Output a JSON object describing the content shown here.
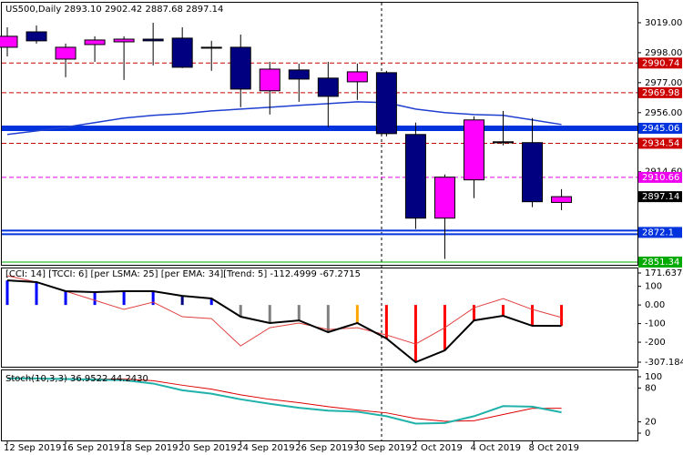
{
  "chart_data": [
    {
      "type": "candlestick",
      "title": "US500,Daily  2893.10 2902.42 2887.68 2897.14",
      "categories": [
        "12 Sep 2019",
        null,
        "16 Sep 2019",
        null,
        "18 Sep 2019",
        null,
        "20 Sep 2019",
        null,
        "24 Sep 2019",
        null,
        "26 Sep 2019",
        null,
        "30 Sep 2019",
        null,
        "2 Oct 2019",
        null,
        "4 Oct 2019",
        null,
        "8 Oct 2019",
        null
      ],
      "open": [
        3001.8,
        3012.6,
        2993.5,
        3003.7,
        3005.6,
        3007.5,
        3008.2,
        3001.8,
        3001.8,
        2971.3,
        2985.9,
        2980.2,
        2977.6,
        2984.0,
        2940.7,
        2882.1,
        2908.9,
        2935.6,
        2935.0,
        2893.1
      ],
      "high": [
        3015.8,
        3017.1,
        3004.4,
        3009.5,
        3009.5,
        3019.0,
        3015.8,
        3006.3,
        3010.7,
        2991.6,
        2990.4,
        2991.6,
        2990.4,
        2985.3,
        2949.0,
        2912.7,
        2953.4,
        2957.2,
        2952.2,
        2902.42
      ],
      "low": [
        2995.4,
        3004.4,
        2980.8,
        2991.6,
        2978.9,
        2989.1,
        2987.2,
        2985.3,
        2959.8,
        2954.7,
        2963.6,
        2945.8,
        2964.9,
        2939.4,
        2874.5,
        2853.5,
        2896.1,
        2933.1,
        2889.8,
        2887.68
      ],
      "close": [
        3009.5,
        3006.3,
        3001.8,
        3006.9,
        3007.5,
        3006.3,
        2987.8,
        3001.2,
        2972.5,
        2986.5,
        2979.5,
        2967.4,
        2984.6,
        2941.3,
        2882.1,
        2910.8,
        2950.9,
        2934.9,
        2893.6,
        2897.14
      ],
      "up_color": "#ff00ff",
      "down_color": "#000080",
      "ma": {
        "color": "#1f3fd0",
        "values": [
          2940.7,
          2943.2,
          2945.8,
          2949.0,
          2952.2,
          2954.1,
          2955.3,
          2957.2,
          2958.5,
          2959.8,
          2961.1,
          2962.3,
          2963.6,
          2963.0,
          2958.5,
          2956.0,
          2954.7,
          2954.1,
          2950.9,
          2947.7
        ]
      },
      "ylim": [
        2849.4,
        3033
      ],
      "yticks": [
        {
          "value": 3019,
          "label": "3019.00"
        },
        {
          "value": 2998,
          "label": "2998.00"
        },
        {
          "value": 2977,
          "label": "2977.00"
        },
        {
          "value": 2956,
          "label": "2956.00"
        },
        {
          "value": 2914.6,
          "label": "2914.60"
        }
      ],
      "levels": [
        {
          "value": 2990.74,
          "color": "#cc0000",
          "style": "dashed"
        },
        {
          "value": 2969.98,
          "color": "#cc0000",
          "style": "dashed"
        },
        {
          "value": 2945.06,
          "color": "#0033dd",
          "style": "thick"
        },
        {
          "value": 2934.54,
          "color": "#cc0000",
          "style": "dashed"
        },
        {
          "value": 2910.66,
          "color": "#ee00ee",
          "style": "dashed"
        },
        {
          "value": 2872.1,
          "color": "#0033dd",
          "style": "double"
        },
        {
          "value": 2851.34,
          "color": "#00aa00",
          "style": "solid"
        }
      ],
      "last_color": "#000000"
    },
    {
      "type": "line",
      "title": "[CCI: 14] [TCCI: 6] [per LSMA: 25] [per EMA: 34][Trend: 5]  -112.4999 -67.2715",
      "series": [
        {
          "color": "#000000",
          "values": [
            132,
            123,
            74,
            69,
            74,
            74,
            49,
            35,
            -63,
            -97,
            -83,
            -146,
            -97,
            -180,
            -307.1842,
            -244,
            -83,
            -58,
            -112,
            -112.4999
          ]
        },
        {
          "color": "#e04040",
          "values": [
            157,
            123,
            74,
            25,
            -24,
            15,
            -63,
            -73,
            -220,
            -122,
            -97,
            -132,
            -122,
            -161,
            -210,
            -122,
            -15,
            34,
            -24,
            -67.2715
          ]
        }
      ],
      "bar_colors": [
        "#0000ff",
        "#0000ff",
        "#0000ff",
        "#0000ff",
        "#0000ff",
        "#0000ff",
        "#000080",
        "#0000ff",
        "#808080",
        "#808080",
        "#808080",
        "#808080",
        "#ffa500",
        "#ff0000",
        "#ff0000",
        "#ff0000",
        "#ff0000",
        "#ff0000",
        "#ff0000",
        "#ff0000"
      ],
      "ylim": [
        -307.1842,
        171.6374
      ],
      "yticks": [
        171.6374,
        100,
        {
          "value": 0,
          "label": "0.00"
        },
        -100,
        -200,
        -307.1842
      ]
    },
    {
      "type": "line",
      "title": "Stoch(10,3,3) 36.9522 44.2430",
      "series": [
        {
          "color": "#20b2aa",
          "values": [
            97,
            97,
            96,
            95,
            94,
            88,
            76,
            70,
            60,
            52,
            45,
            40,
            38,
            30,
            17,
            18,
            30,
            48,
            47,
            36.9522
          ]
        },
        {
          "color": "#dd0000",
          "values": [
            98,
            97,
            96,
            96,
            96,
            93,
            85,
            78,
            68,
            60,
            54,
            47,
            41,
            36,
            26,
            21,
            22,
            33,
            44,
            44.243
          ]
        }
      ],
      "ylim": [
        -12.9,
        109.7
      ],
      "yticks": [
        100,
        80,
        20,
        0
      ]
    }
  ]
}
